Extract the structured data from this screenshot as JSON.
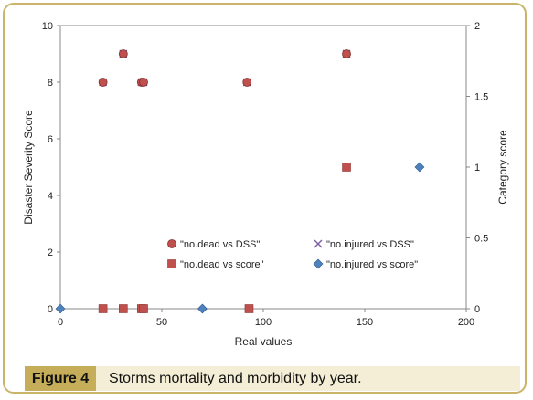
{
  "caption": {
    "label": "Figure 4",
    "text": "Storms mortality and morbidity by year."
  },
  "colors": {
    "frame": "#c9b46a",
    "caption_label_bg": "#c5ad5a",
    "caption_bg": "#f4eed6",
    "dead_dss": "#c0504d",
    "dead_score": "#c0504d",
    "injured_dss": "#7b5ea7",
    "injured_score": "#4f81bd"
  },
  "chart_data": {
    "type": "scatter",
    "title": "",
    "xlabel": "Real values",
    "ylabel": "Disaster Severity Score",
    "y2label": "Category score",
    "xlim": [
      0,
      200
    ],
    "ylim": [
      0,
      10
    ],
    "y2lim": [
      0,
      2
    ],
    "x_ticks": [
      "0",
      "50",
      "100",
      "150",
      "200"
    ],
    "y_ticks": [
      "0",
      "2",
      "4",
      "6",
      "8",
      "10"
    ],
    "y2_ticks": [
      "0",
      "0.5",
      "1",
      "1.5",
      "2"
    ],
    "grid": false,
    "legend_position": "lower-center",
    "series": [
      {
        "name": "\"no.dead vs DSS\"",
        "marker": "circle",
        "axis": "left",
        "points": [
          [
            21,
            8
          ],
          [
            31,
            9
          ],
          [
            40,
            8
          ],
          [
            41,
            8
          ],
          [
            92,
            8
          ],
          [
            141,
            9
          ]
        ]
      },
      {
        "name": "\"no.injured vs DSS\"",
        "marker": "x",
        "axis": "left",
        "points": [
          [
            21,
            8
          ],
          [
            31,
            9
          ],
          [
            40,
            8
          ],
          [
            41,
            8
          ],
          [
            92,
            8
          ],
          [
            141,
            9
          ]
        ]
      },
      {
        "name": "\"no.dead vs score\"",
        "marker": "square",
        "axis": "right",
        "points": [
          [
            21,
            0
          ],
          [
            31,
            0
          ],
          [
            40,
            0
          ],
          [
            41,
            0
          ],
          [
            93,
            0
          ],
          [
            141,
            1
          ]
        ]
      },
      {
        "name": "\"no.injured vs score\"",
        "marker": "diamond",
        "axis": "right",
        "points": [
          [
            0,
            0
          ],
          [
            70,
            0
          ],
          [
            177,
            1
          ]
        ]
      }
    ]
  }
}
